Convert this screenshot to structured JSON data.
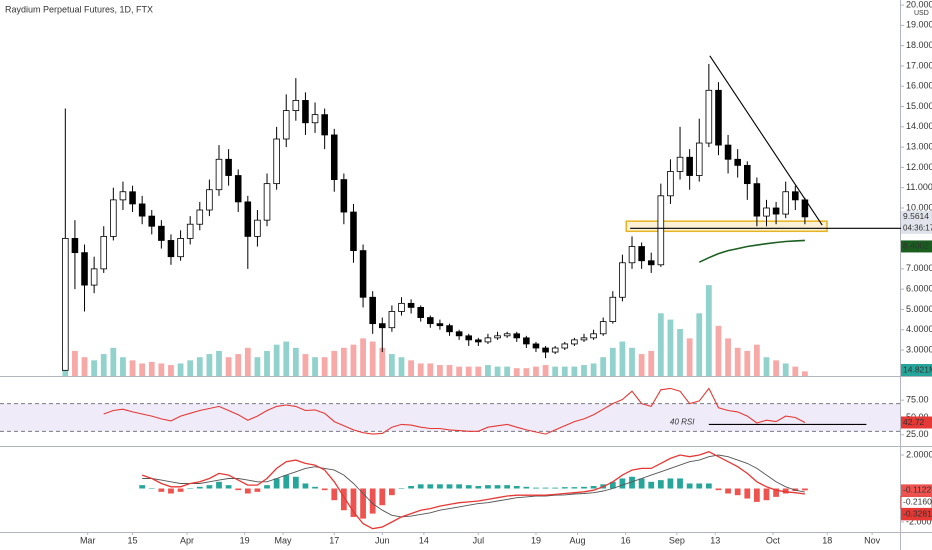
{
  "chart_data": [
    {
      "type": "candlestick",
      "title": "Raydium Perpetual Futures, 1D, FTX",
      "currency": "USD",
      "open": [
        2.0,
        8.5,
        7.8,
        6.2,
        7.0,
        8.6,
        10.4,
        10.8,
        10.2,
        9.6,
        9.1,
        8.4,
        7.6,
        8.5,
        9.2,
        9.9,
        10.9,
        12.4,
        11.6,
        10.3,
        8.6,
        9.4,
        11.2,
        13.4,
        14.8,
        15.3,
        14.2,
        14.6,
        13.6,
        11.4,
        9.8,
        7.9,
        5.6,
        4.3,
        4.1,
        4.9,
        5.3,
        5.1,
        4.6,
        4.3,
        4.2,
        3.9,
        3.7,
        3.5,
        3.4,
        3.6,
        3.7,
        3.8,
        3.6,
        3.3,
        3.1,
        2.9,
        3.1,
        3.3,
        3.5,
        3.6,
        3.8,
        4.4,
        5.6,
        7.3,
        8.1,
        7.4,
        7.2,
        10.6,
        11.8,
        12.5,
        11.6,
        13.2,
        15.8,
        13.1,
        12.4,
        12.1,
        11.2,
        9.6,
        10.0,
        9.7,
        10.8,
        10.4
      ],
      "high": [
        14.9,
        9.4,
        8.2,
        7.6,
        9.1,
        11.0,
        11.3,
        11.1,
        10.6,
        9.9,
        9.4,
        8.7,
        8.9,
        9.6,
        10.3,
        11.4,
        13.1,
        12.9,
        11.9,
        10.6,
        9.9,
        11.7,
        14.0,
        15.6,
        16.4,
        15.7,
        15.2,
        14.9,
        13.9,
        11.7,
        10.2,
        8.2,
        5.9,
        4.6,
        5.2,
        5.6,
        5.5,
        5.2,
        4.7,
        4.5,
        4.3,
        4.0,
        3.8,
        3.6,
        3.8,
        3.9,
        3.9,
        3.9,
        3.7,
        3.4,
        3.2,
        3.2,
        3.4,
        3.6,
        3.8,
        4.0,
        4.6,
        5.9,
        7.7,
        8.6,
        8.3,
        7.8,
        11.2,
        12.4,
        14.0,
        12.9,
        14.4,
        17.1,
        16.2,
        13.6,
        12.9,
        12.3,
        11.5,
        10.4,
        10.3,
        11.3,
        11.1,
        10.5
      ],
      "low": [
        2.0,
        6.0,
        4.9,
        5.8,
        6.8,
        8.4,
        9.9,
        9.8,
        9.2,
        8.7,
        8.0,
        7.2,
        7.4,
        8.2,
        8.9,
        9.6,
        10.6,
        11.1,
        9.8,
        7.0,
        8.1,
        9.1,
        10.9,
        13.0,
        14.3,
        13.6,
        13.7,
        12.9,
        10.8,
        9.2,
        7.3,
        5.1,
        3.8,
        2.9,
        3.9,
        4.7,
        4.8,
        4.4,
        4.1,
        4.0,
        3.7,
        3.5,
        3.2,
        3.2,
        3.3,
        3.5,
        3.6,
        3.4,
        3.1,
        2.9,
        2.6,
        2.8,
        3.0,
        3.2,
        3.4,
        3.5,
        3.7,
        4.3,
        5.4,
        7.0,
        7.0,
        6.8,
        7.1,
        10.2,
        11.4,
        10.9,
        11.3,
        13.0,
        12.6,
        11.7,
        11.5,
        10.4,
        9.1,
        9.1,
        9.2,
        9.5,
        9.9,
        9.2
      ],
      "close": [
        8.5,
        7.8,
        6.2,
        7.0,
        8.6,
        10.4,
        10.8,
        10.2,
        9.6,
        9.1,
        8.4,
        7.6,
        8.5,
        9.2,
        9.9,
        10.9,
        12.4,
        11.6,
        10.3,
        8.6,
        9.4,
        11.2,
        13.4,
        14.8,
        15.3,
        14.2,
        14.6,
        13.6,
        11.4,
        9.8,
        7.9,
        5.6,
        4.3,
        4.1,
        4.9,
        5.3,
        5.1,
        4.6,
        4.3,
        4.2,
        3.9,
        3.7,
        3.5,
        3.4,
        3.6,
        3.7,
        3.8,
        3.6,
        3.3,
        3.1,
        2.9,
        3.1,
        3.3,
        3.5,
        3.6,
        3.8,
        4.4,
        5.6,
        7.3,
        8.1,
        7.4,
        7.2,
        10.6,
        11.8,
        12.5,
        11.6,
        13.2,
        15.8,
        13.1,
        12.4,
        12.1,
        11.2,
        9.6,
        10.0,
        9.7,
        10.8,
        10.4,
        9.5614
      ],
      "up_color": "#ffffff",
      "down_color": "#000000",
      "volume": [
        200,
        80,
        60,
        50,
        70,
        90,
        60,
        50,
        40,
        45,
        40,
        35,
        40,
        50,
        60,
        70,
        80,
        60,
        70,
        90,
        60,
        80,
        100,
        110,
        90,
        70,
        60,
        60,
        80,
        90,
        100,
        120,
        110,
        90,
        70,
        60,
        50,
        40,
        40,
        35,
        35,
        30,
        30,
        30,
        35,
        30,
        30,
        25,
        25,
        30,
        35,
        30,
        30,
        30,
        35,
        40,
        60,
        90,
        110,
        90,
        70,
        80,
        200,
        180,
        150,
        120,
        200,
        290,
        160,
        120,
        90,
        80,
        100,
        60,
        50,
        40,
        30,
        14.821
      ],
      "volume_lim": [
        0,
        1200
      ],
      "volume_up_color": "#26a69a",
      "volume_down_color": "#ef5350",
      "volume_last_label": "14.821M",
      "ma": {
        "color": "#1b5e20",
        "values": [
          null,
          null,
          null,
          null,
          null,
          null,
          null,
          null,
          null,
          null,
          null,
          null,
          null,
          null,
          null,
          null,
          null,
          null,
          null,
          null,
          null,
          null,
          null,
          null,
          null,
          null,
          null,
          null,
          null,
          null,
          null,
          null,
          null,
          null,
          null,
          null,
          null,
          null,
          null,
          null,
          null,
          null,
          null,
          null,
          null,
          null,
          null,
          null,
          null,
          null,
          null,
          null,
          null,
          null,
          null,
          null,
          null,
          null,
          null,
          null,
          null,
          null,
          null,
          null,
          null,
          null,
          7.33,
          7.55,
          7.75,
          7.9,
          8.0,
          8.1,
          8.17,
          8.24,
          8.3,
          8.35,
          8.38,
          8.4002
        ]
      },
      "countdown": "04:36:17",
      "xlim": [
        -6.8,
        86.9
      ],
      "xticks": [
        {
          "value": 2.33,
          "label": "Mar"
        },
        {
          "value": 7,
          "label": "15"
        },
        {
          "value": 12.67,
          "label": "Apr"
        },
        {
          "value": 18.67,
          "label": "19"
        },
        {
          "value": 22.67,
          "label": "May"
        },
        {
          "value": 28,
          "label": "17"
        },
        {
          "value": 33,
          "label": "Jun"
        },
        {
          "value": 37.33,
          "label": "14"
        },
        {
          "value": 43,
          "label": "Jul"
        },
        {
          "value": 49,
          "label": "19"
        },
        {
          "value": 53.33,
          "label": "Aug"
        },
        {
          "value": 58.33,
          "label": "16"
        },
        {
          "value": 63.67,
          "label": "Sep"
        },
        {
          "value": 67.67,
          "label": "13"
        },
        {
          "value": 73.67,
          "label": "Oct"
        },
        {
          "value": 79.33,
          "label": "18"
        },
        {
          "value": 84,
          "label": "Nov"
        }
      ],
      "ylim": [
        1.72,
        20.25
      ],
      "yticks": [
        {
          "value": 3,
          "label": "3.0000"
        },
        {
          "value": 4,
          "label": "4.0000"
        },
        {
          "value": 5,
          "label": "5.0000"
        },
        {
          "value": 6,
          "label": "6.0000"
        },
        {
          "value": 7,
          "label": "7.0000"
        },
        {
          "value": 8,
          "label": "8.0000"
        },
        {
          "value": 9,
          "label": "9.0000"
        },
        {
          "value": 10,
          "label": "10.0000"
        },
        {
          "value": 11,
          "label": "11.0000"
        },
        {
          "value": 12,
          "label": "12.0000"
        },
        {
          "value": 13,
          "label": "13.0000"
        },
        {
          "value": 14,
          "label": "14.0000"
        },
        {
          "value": 15,
          "label": "15.0000"
        },
        {
          "value": 16,
          "label": "16.0000"
        },
        {
          "value": 17,
          "label": "17.0000"
        },
        {
          "value": 18,
          "label": "18.0000"
        },
        {
          "value": 19,
          "label": "19.0000"
        },
        {
          "value": 20,
          "label": "20.0000"
        }
      ],
      "drawings": [
        {
          "type": "rectangle",
          "points": [
            [
              58.4,
              9.35
            ],
            [
              79.3,
              8.85
            ]
          ],
          "color": "#e6b422"
        },
        {
          "type": "line",
          "points": [
            [
              67.1,
              17.5
            ],
            [
              78.8,
              9.16
            ]
          ],
          "color": "#000000"
        },
        {
          "type": "line",
          "points": [
            [
              58.8,
              9.0
            ],
            [
              90.2,
              9.0
            ]
          ],
          "color": "#000000"
        }
      ]
    },
    {
      "type": "rsi",
      "color": "#e53935",
      "values": [
        null,
        null,
        null,
        null,
        55,
        60,
        62,
        58,
        55,
        52,
        48,
        45,
        52,
        56,
        60,
        63,
        66,
        60,
        54,
        46,
        52,
        60,
        66,
        68,
        66,
        60,
        61,
        56,
        44,
        38,
        32,
        28,
        26,
        27,
        36,
        40,
        39,
        36,
        34,
        34,
        32,
        31,
        30,
        30,
        36,
        38,
        40,
        36,
        32,
        29,
        26,
        32,
        38,
        44,
        48,
        54,
        62,
        70,
        76,
        88,
        70,
        66,
        90,
        92,
        88,
        70,
        74,
        92,
        64,
        60,
        58,
        52,
        42,
        46,
        44,
        52,
        50,
        42.72
      ],
      "bands": [
        30,
        70
      ],
      "band_color": "#7e57c2",
      "ylim": [
        8.8,
        107
      ],
      "yticks": [
        {
          "value": 25,
          "label": "25.00"
        },
        {
          "value": 50,
          "label": "50.00"
        },
        {
          "value": 75,
          "label": "75.00"
        }
      ],
      "annotation": {
        "text": "40 RSI",
        "line": [
          [
            67.0,
            40
          ],
          [
            83.4,
            40
          ]
        ]
      }
    },
    {
      "type": "macd",
      "macd": {
        "color": "#e53935",
        "values": [
          null,
          null,
          null,
          null,
          null,
          null,
          null,
          null,
          0.8,
          0.6,
          0.3,
          0.1,
          0.1,
          0.3,
          0.4,
          0.6,
          0.9,
          0.8,
          0.5,
          0.2,
          0.2,
          0.6,
          1.2,
          1.6,
          1.7,
          1.5,
          1.4,
          1.1,
          0.4,
          -0.5,
          -1.4,
          -2.1,
          -2.4,
          -2.3,
          -2.0,
          -1.7,
          -1.5,
          -1.3,
          -1.2,
          -1.05,
          -0.95,
          -0.85,
          -0.8,
          -0.75,
          -0.65,
          -0.55,
          -0.45,
          -0.4,
          -0.4,
          -0.4,
          -0.4,
          -0.35,
          -0.3,
          -0.25,
          -0.2,
          -0.1,
          0.1,
          0.4,
          0.8,
          1.1,
          1.2,
          1.2,
          1.5,
          1.8,
          2.0,
          1.9,
          2.0,
          2.2,
          1.9,
          1.6,
          1.3,
          0.9,
          0.4,
          0.1,
          -0.1,
          -0.2,
          -0.25,
          -0.3281
        ]
      },
      "signal": {
        "color": "#555555",
        "last_label": "-0.2160",
        "values": [
          null,
          null,
          null,
          null,
          null,
          null,
          null,
          null,
          0.6,
          0.6,
          0.5,
          0.4,
          0.3,
          0.3,
          0.3,
          0.4,
          0.5,
          0.6,
          0.6,
          0.5,
          0.4,
          0.4,
          0.6,
          0.8,
          1.0,
          1.2,
          1.3,
          1.2,
          1.1,
          0.8,
          0.3,
          -0.3,
          -0.9,
          -1.3,
          -1.6,
          -1.7,
          -1.65,
          -1.55,
          -1.45,
          -1.3,
          -1.2,
          -1.1,
          -1.0,
          -0.9,
          -0.85,
          -0.75,
          -0.65,
          -0.55,
          -0.5,
          -0.45,
          -0.45,
          -0.4,
          -0.38,
          -0.33,
          -0.3,
          -0.25,
          -0.15,
          0.0,
          0.2,
          0.4,
          0.6,
          0.8,
          1.0,
          1.2,
          1.4,
          1.6,
          1.7,
          1.9,
          2.0,
          1.9,
          1.7,
          1.5,
          1.2,
          0.8,
          0.4,
          0.1,
          -0.1,
          -0.216
        ]
      },
      "histogram": {
        "up_color": "#26a69a",
        "down_color": "#ef5350",
        "values": [
          null,
          null,
          null,
          null,
          null,
          null,
          null,
          null,
          0.2,
          0.0,
          -0.2,
          -0.3,
          -0.2,
          0.0,
          0.1,
          0.2,
          0.4,
          0.2,
          -0.1,
          -0.3,
          -0.2,
          0.2,
          0.6,
          0.8,
          0.7,
          0.3,
          0.1,
          -0.1,
          -0.7,
          -1.3,
          -1.7,
          -1.8,
          -1.5,
          -1.0,
          -0.4,
          0.0,
          0.15,
          0.25,
          0.25,
          0.25,
          0.25,
          0.25,
          0.2,
          0.15,
          0.2,
          0.2,
          0.2,
          0.15,
          0.1,
          0.05,
          0.05,
          0.05,
          0.08,
          0.08,
          0.1,
          0.15,
          0.25,
          0.4,
          0.6,
          0.7,
          0.6,
          0.4,
          0.5,
          0.6,
          0.6,
          0.3,
          0.3,
          0.3,
          -0.1,
          -0.3,
          -0.4,
          -0.6,
          -0.8,
          -0.7,
          -0.5,
          -0.3,
          -0.15,
          -0.1122
        ]
      },
      "ylim": [
        -2.6,
        2.48
      ],
      "yticks": [
        {
          "value": 2,
          "label": "2.0000"
        },
        {
          "value": -2,
          "label": "-2.0000"
        }
      ]
    }
  ]
}
